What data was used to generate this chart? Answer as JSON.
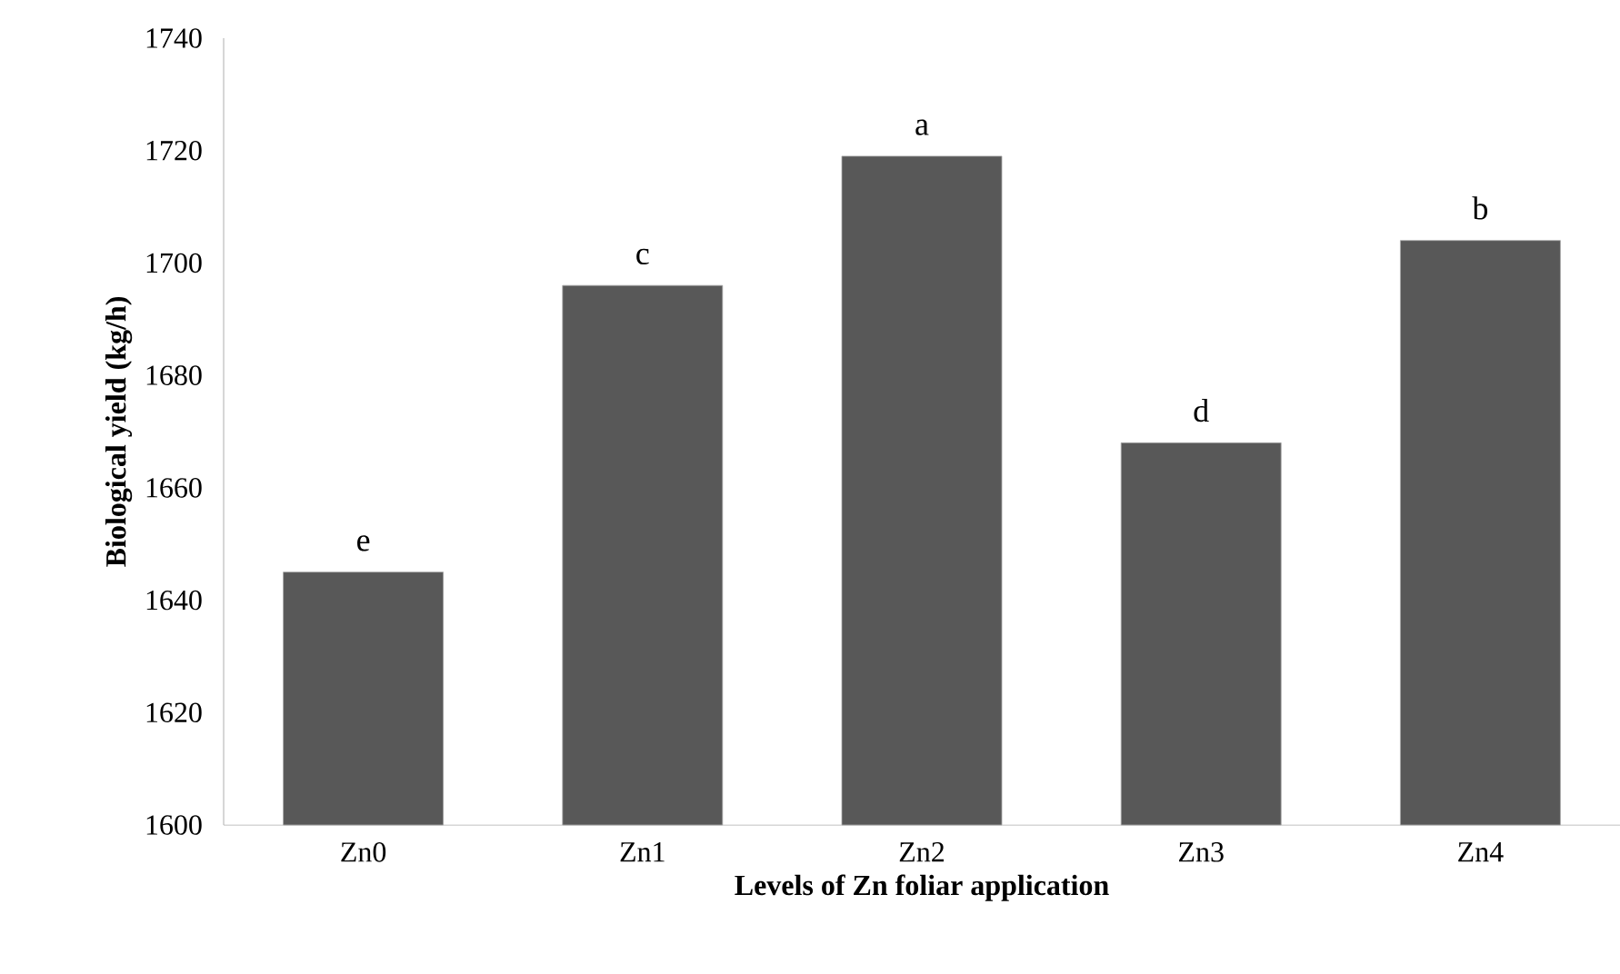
{
  "chart_data": {
    "type": "bar",
    "xlabel": "Levels of Zn foliar application",
    "ylabel": "Biological yield (kg/h)",
    "categories": [
      "Zn0",
      "Zn1",
      "Zn2",
      "Zn3",
      "Zn4"
    ],
    "values": [
      1645,
      1696,
      1719,
      1668,
      1704
    ],
    "color": "#585858",
    "ylim": [
      1600,
      1740
    ],
    "yticks": [
      1600,
      1620,
      1640,
      1660,
      1680,
      1700,
      1720,
      1740
    ],
    "annotations": [
      {
        "text": "e",
        "x": "Zn0",
        "y": 1645
      },
      {
        "text": "c",
        "x": "Zn1",
        "y": 1696
      },
      {
        "text": "a",
        "x": "Zn2",
        "y": 1719
      },
      {
        "text": "d",
        "x": "Zn3",
        "y": 1668
      },
      {
        "text": "b",
        "x": "Zn4",
        "y": 1704
      }
    ],
    "grid": false
  }
}
